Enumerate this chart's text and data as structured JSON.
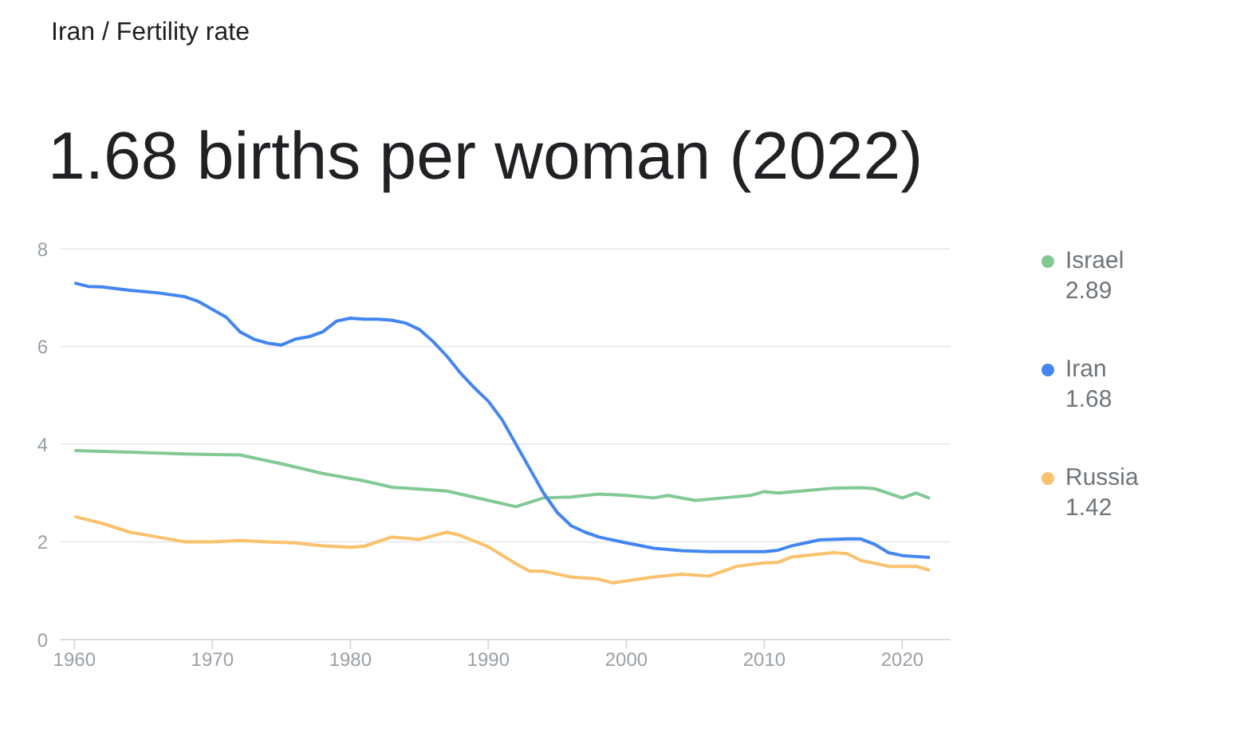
{
  "chart_data": {
    "type": "line",
    "subtitle": "Iran / Fertility rate",
    "title": "1.68 births per woman (2022)",
    "xlim": [
      1959,
      2023.5
    ],
    "xticks": [
      1960,
      1970,
      1980,
      1990,
      2000,
      2010,
      2020
    ],
    "ylim": [
      0,
      8
    ],
    "yticks": [
      0,
      2,
      4,
      6,
      8
    ],
    "grid": "y",
    "annotations": [
      "2.89",
      "1.68",
      "1.42"
    ],
    "legend": "right",
    "marker": "none",
    "line_style": "solid",
    "series": [
      {
        "name": "Israel",
        "color": "#81c995",
        "x": [
          1960,
          1965,
          1968,
          1972,
          1975,
          1978,
          1981,
          1983,
          1987,
          1990,
          1992,
          1994,
          1996,
          1998,
          2000,
          2002,
          2003,
          2005,
          2007,
          2009,
          2010,
          2011,
          2013,
          2015,
          2017,
          2018,
          2020,
          2021,
          2022
        ],
        "values": [
          3.87,
          3.83,
          3.8,
          3.78,
          3.6,
          3.4,
          3.25,
          3.12,
          3.04,
          2.85,
          2.72,
          2.9,
          2.92,
          2.98,
          2.95,
          2.9,
          2.95,
          2.85,
          2.9,
          2.95,
          3.03,
          3.0,
          3.05,
          3.1,
          3.11,
          3.09,
          2.9,
          3.0,
          2.89
        ]
      },
      {
        "name": "Iran",
        "color": "#4285f4",
        "x": [
          1960,
          1961,
          1962,
          1964,
          1966,
          1968,
          1969,
          1971,
          1972,
          1973,
          1974,
          1975,
          1976,
          1977,
          1978,
          1979,
          1980,
          1981,
          1982,
          1983,
          1984,
          1985,
          1986,
          1987,
          1988,
          1989,
          1990,
          1991,
          1992,
          1993,
          1994,
          1995,
          1996,
          1997,
          1998,
          2000,
          2002,
          2004,
          2006,
          2008,
          2010,
          2011,
          2012,
          2014,
          2016,
          2017,
          2018,
          2019,
          2020,
          2021,
          2022
        ],
        "values": [
          7.3,
          7.23,
          7.22,
          7.15,
          7.1,
          7.02,
          6.92,
          6.6,
          6.3,
          6.15,
          6.07,
          6.03,
          6.15,
          6.2,
          6.3,
          6.52,
          6.58,
          6.56,
          6.56,
          6.54,
          6.48,
          6.35,
          6.1,
          5.8,
          5.45,
          5.15,
          4.88,
          4.5,
          4.0,
          3.5,
          3.0,
          2.6,
          2.33,
          2.2,
          2.1,
          1.98,
          1.87,
          1.82,
          1.8,
          1.8,
          1.8,
          1.83,
          1.92,
          2.04,
          2.06,
          2.06,
          1.95,
          1.78,
          1.72,
          1.7,
          1.68
        ]
      },
      {
        "name": "Russia",
        "color": "#fbc16b",
        "x": [
          1960,
          1962,
          1964,
          1966,
          1968,
          1970,
          1972,
          1974,
          1976,
          1978,
          1980,
          1981,
          1983,
          1985,
          1987,
          1988,
          1990,
          1992,
          1993,
          1994,
          1996,
          1998,
          1999,
          2000,
          2002,
          2004,
          2006,
          2008,
          2010,
          2011,
          2012,
          2014,
          2015,
          2016,
          2017,
          2019,
          2020,
          2021,
          2022
        ],
        "values": [
          2.52,
          2.38,
          2.2,
          2.1,
          2.0,
          2.0,
          2.03,
          2.0,
          1.98,
          1.92,
          1.89,
          1.91,
          2.1,
          2.05,
          2.2,
          2.13,
          1.9,
          1.55,
          1.4,
          1.4,
          1.28,
          1.24,
          1.16,
          1.2,
          1.28,
          1.34,
          1.3,
          1.5,
          1.57,
          1.58,
          1.69,
          1.75,
          1.78,
          1.76,
          1.62,
          1.5,
          1.5,
          1.5,
          1.42
        ]
      }
    ]
  }
}
